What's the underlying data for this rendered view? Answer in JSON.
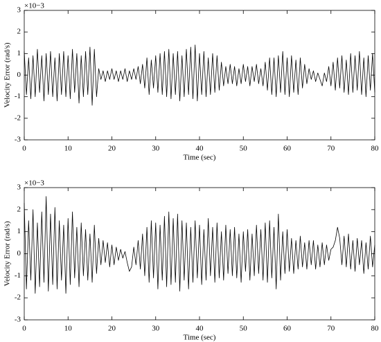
{
  "chart_data": [
    {
      "type": "line",
      "xlabel": "Time (sec)",
      "ylabel": "Velocity Error (rad/s)",
      "axis_multiplier": "×10−3",
      "xlim": [
        0,
        80
      ],
      "ylim": [
        -3,
        3
      ],
      "xticks": [
        0,
        10,
        20,
        30,
        40,
        50,
        60,
        70,
        80
      ],
      "yticks": [
        -3,
        -2,
        -1,
        0,
        1,
        2,
        3
      ],
      "grid": false,
      "series": [
        {
          "color": "#000000",
          "x": [
            0,
            0.5,
            1,
            1.5,
            2,
            2.5,
            3,
            3.5,
            4,
            4.5,
            5,
            5.5,
            6,
            6.5,
            7,
            7.5,
            8,
            8.5,
            9,
            9.5,
            10,
            10.5,
            11,
            11.5,
            12,
            12.5,
            13,
            13.5,
            14,
            14.5,
            15,
            15.5,
            16,
            16.5,
            17,
            17.5,
            18,
            18.5,
            19,
            19.5,
            20,
            20.5,
            21,
            21.5,
            22,
            22.5,
            23,
            23.5,
            24,
            24.5,
            25,
            25.5,
            26,
            26.5,
            27,
            27.5,
            28,
            28.5,
            29,
            29.5,
            30,
            30.5,
            31,
            31.5,
            32,
            32.5,
            33,
            33.5,
            34,
            34.5,
            35,
            35.5,
            36,
            36.5,
            37,
            37.5,
            38,
            38.5,
            39,
            39.5,
            40,
            40.5,
            41,
            41.5,
            42,
            42.5,
            43,
            43.5,
            44,
            44.5,
            45,
            45.5,
            46,
            46.5,
            47,
            47.5,
            48,
            48.5,
            49,
            49.5,
            50,
            50.5,
            51,
            51.5,
            52,
            52.5,
            53,
            53.5,
            54,
            54.5,
            55,
            55.5,
            56,
            56.5,
            57,
            57.5,
            58,
            58.5,
            59,
            59.5,
            60,
            60.5,
            61,
            61.5,
            62,
            62.5,
            63,
            63.5,
            64,
            64.5,
            65,
            65.5,
            66,
            66.5,
            67,
            67.5,
            68,
            68.5,
            69,
            69.5,
            70,
            70.5,
            71,
            71.5,
            72,
            72.5,
            73,
            73.5,
            74,
            74.5,
            75,
            75.5,
            76,
            76.5,
            77,
            77.5,
            78,
            78.5,
            79,
            79.5,
            80
          ],
          "values": [
            1.1,
            -0.9,
            0.8,
            -1.1,
            0.9,
            -1.0,
            1.2,
            -0.8,
            0.9,
            -1.2,
            1.0,
            -0.9,
            1.1,
            -1.0,
            0.8,
            -1.2,
            1.0,
            -0.9,
            1.1,
            -1.0,
            0.9,
            -1.1,
            1.2,
            -0.8,
            1.0,
            -1.3,
            0.9,
            -1.0,
            1.1,
            -0.9,
            1.3,
            -1.4,
            1.2,
            -1.0,
            0.3,
            -0.2,
            0.2,
            -0.3,
            0.2,
            -0.2,
            0.3,
            -0.2,
            0.2,
            -0.3,
            0.2,
            -0.2,
            0.3,
            -0.3,
            0.2,
            -0.2,
            0.3,
            -0.2,
            0.4,
            -0.4,
            0.5,
            -0.6,
            0.8,
            -0.9,
            0.7,
            -0.6,
            0.9,
            -0.8,
            1.0,
            -0.9,
            1.1,
            -1.0,
            1.2,
            -1.1,
            1.0,
            -0.9,
            1.1,
            -1.2,
            0.9,
            -1.0,
            1.2,
            -0.9,
            1.3,
            -1.1,
            1.4,
            -1.2,
            1.0,
            -0.9,
            1.1,
            -1.0,
            0.8,
            -0.9,
            1.0,
            -0.8,
            0.9,
            -0.7,
            0.6,
            -0.5,
            0.4,
            -0.4,
            0.5,
            -0.4,
            0.4,
            -0.5,
            0.3,
            -0.4,
            0.5,
            -0.3,
            0.4,
            -0.5,
            0.4,
            -0.3,
            0.5,
            -0.4,
            0.3,
            -0.5,
            0.6,
            -0.7,
            0.8,
            -0.9,
            0.8,
            -1.0,
            0.9,
            -0.8,
            1.1,
            -0.9,
            0.8,
            -1.0,
            0.9,
            -0.8,
            0.7,
            -0.9,
            0.8,
            -0.6,
            0.5,
            -0.4,
            0.3,
            -0.2,
            0.2,
            -0.3,
            0.1,
            -0.2,
            -0.5,
            0.1,
            -0.3,
            0.4,
            -0.5,
            0.6,
            -0.7,
            0.8,
            -0.6,
            0.9,
            -0.8,
            0.7,
            -0.9,
            1.0,
            -0.8,
            0.9,
            -0.7,
            1.1,
            -0.9,
            0.8,
            -1.0,
            0.9,
            -0.7,
            1.0,
            -0.8
          ]
        }
      ]
    },
    {
      "type": "line",
      "xlabel": "Time (sec)",
      "ylabel": "Velocity Error (rad/s)",
      "axis_multiplier": "×10−3",
      "xlim": [
        0,
        80
      ],
      "ylim": [
        -3,
        3
      ],
      "xticks": [
        0,
        10,
        20,
        30,
        40,
        50,
        60,
        70,
        80
      ],
      "yticks": [
        -3,
        -2,
        -1,
        0,
        1,
        2,
        3
      ],
      "grid": false,
      "series": [
        {
          "color": "#000000",
          "x": [
            0,
            0.5,
            1,
            1.5,
            2,
            2.5,
            3,
            3.5,
            4,
            4.5,
            5,
            5.5,
            6,
            6.5,
            7,
            7.5,
            8,
            8.5,
            9,
            9.5,
            10,
            10.5,
            11,
            11.5,
            12,
            12.5,
            13,
            13.5,
            14,
            14.5,
            15,
            15.5,
            16,
            16.5,
            17,
            17.5,
            18,
            18.5,
            19,
            19.5,
            20,
            20.5,
            21,
            21.5,
            22,
            22.5,
            23,
            23.5,
            24,
            24.5,
            25,
            25.5,
            26,
            26.5,
            27,
            27.5,
            28,
            28.5,
            29,
            29.5,
            30,
            30.5,
            31,
            31.5,
            32,
            32.5,
            33,
            33.5,
            34,
            34.5,
            35,
            35.5,
            36,
            36.5,
            37,
            37.5,
            38,
            38.5,
            39,
            39.5,
            40,
            40.5,
            41,
            41.5,
            42,
            42.5,
            43,
            43.5,
            44,
            44.5,
            45,
            45.5,
            46,
            46.5,
            47,
            47.5,
            48,
            48.5,
            49,
            49.5,
            50,
            50.5,
            51,
            51.5,
            52,
            52.5,
            53,
            53.5,
            54,
            54.5,
            55,
            55.5,
            56,
            56.5,
            57,
            57.5,
            58,
            58.5,
            59,
            59.5,
            60,
            60.5,
            61,
            61.5,
            62,
            62.5,
            63,
            63.5,
            64,
            64.5,
            65,
            65.5,
            66,
            66.5,
            67,
            67.5,
            68,
            68.5,
            69,
            69.5,
            70,
            70.5,
            71,
            71.5,
            72,
            72.5,
            73,
            73.5,
            74,
            74.5,
            75,
            75.5,
            76,
            76.5,
            77,
            77.5,
            78,
            78.5,
            79,
            79.5,
            80
          ],
          "values": [
            2.3,
            -1.6,
            1.5,
            -1.2,
            2.0,
            -1.8,
            1.4,
            -1.5,
            1.9,
            -1.3,
            2.6,
            -1.7,
            1.8,
            -1.4,
            2.1,
            -1.6,
            1.5,
            -1.2,
            1.3,
            -1.8,
            1.6,
            -1.4,
            1.9,
            -1.1,
            1.2,
            -1.5,
            1.4,
            -1.0,
            1.1,
            -1.2,
            0.9,
            -1.3,
            1.3,
            -0.9,
            0.7,
            -0.5,
            0.6,
            -0.4,
            0.5,
            -0.6,
            0.4,
            -0.5,
            0.3,
            -0.3,
            0.2,
            -0.2,
            0.1,
            -0.4,
            -0.8,
            -0.6,
            0.3,
            -0.5,
            0.6,
            -0.7,
            0.9,
            -1.0,
            1.2,
            -1.3,
            1.5,
            -1.1,
            1.4,
            -1.6,
            1.3,
            -1.2,
            1.7,
            -1.5,
            1.9,
            -1.4,
            1.6,
            -1.3,
            1.8,
            -1.7,
            1.5,
            -1.2,
            1.4,
            -1.6,
            1.2,
            -1.3,
            1.5,
            -1.1,
            1.3,
            -1.4,
            1.1,
            -1.2,
            1.6,
            -1.0,
            1.2,
            -1.3,
            1.4,
            -1.1,
            1.0,
            -1.2,
            1.3,
            -0.9,
            1.1,
            -1.0,
            1.2,
            -1.1,
            0.9,
            -1.3,
            1.0,
            -0.8,
            1.1,
            -1.2,
            0.9,
            -1.0,
            1.3,
            -0.9,
            1.1,
            -1.2,
            1.4,
            -1.3,
            1.5,
            -1.1,
            1.2,
            -1.6,
            1.8,
            -1.2,
            1.0,
            -0.9,
            1.1,
            -0.8,
            0.7,
            -0.9,
            0.6,
            -0.7,
            0.8,
            -0.6,
            0.5,
            -0.7,
            0.6,
            -0.5,
            0.6,
            -0.7,
            0.4,
            -0.6,
            0.5,
            -0.5,
            0.4,
            -0.3,
            0.2,
            0.3,
            0.6,
            1.2,
            0.7,
            -0.5,
            0.8,
            -0.6,
            0.9,
            -0.7,
            0.6,
            -0.8,
            0.7,
            -0.5,
            0.6,
            -0.9,
            0.5,
            -0.7,
            0.8,
            -0.6,
            0.4
          ]
        }
      ]
    }
  ]
}
